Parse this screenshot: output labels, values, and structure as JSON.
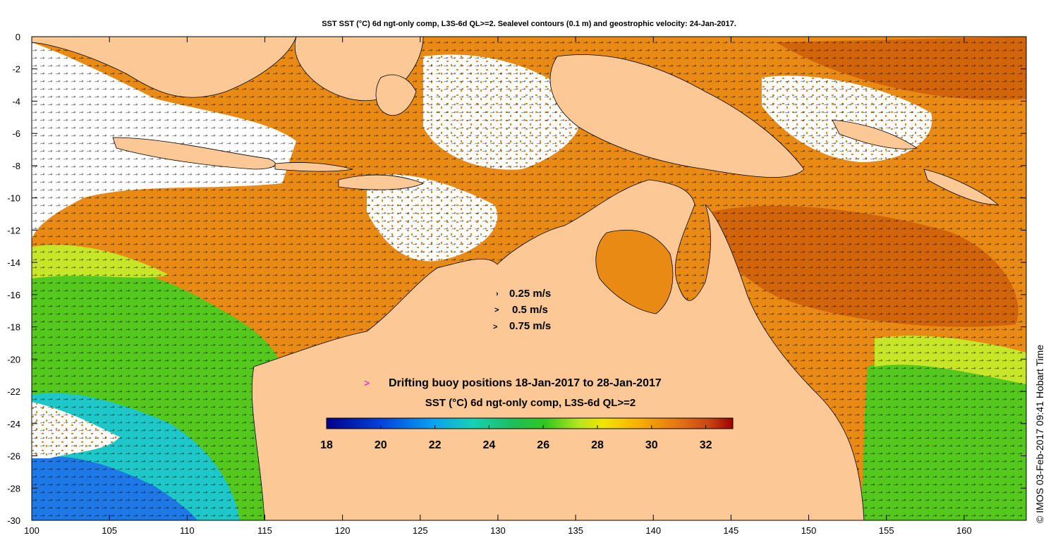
{
  "map": {
    "title": "SST SST (°C) 6d ngt-only comp, L3S-6d QL>=2. Sealevel contours (0.1 m) and geostrophic velocity: 24-Jan-2017.",
    "credit": "© IMOS 03-Feb-2017 09:41 Hobart Time",
    "x_axis": {
      "ticks": [
        "100",
        "105",
        "110",
        "115",
        "120",
        "125",
        "130",
        "135",
        "140",
        "145",
        "150",
        "155",
        "160"
      ],
      "values": [
        100,
        105,
        110,
        115,
        120,
        125,
        130,
        135,
        140,
        145,
        150,
        155,
        160
      ],
      "range": [
        100,
        164
      ]
    },
    "y_axis": {
      "ticks": [
        "0",
        "-2",
        "-4",
        "-6",
        "-8",
        "-10",
        "-12",
        "-14",
        "-16",
        "-18",
        "-20",
        "-22",
        "-24",
        "-26",
        "-28",
        "-30"
      ],
      "values": [
        0,
        -2,
        -4,
        -6,
        -8,
        -10,
        -12,
        -14,
        -16,
        -18,
        -20,
        -22,
        -24,
        -26,
        -28,
        -30
      ],
      "range": [
        -30,
        0
      ]
    },
    "velocity_legend": [
      {
        "symbol": "›",
        "label": "0.25 m/s"
      },
      {
        "symbol": ">",
        "label": "0.5 m/s"
      },
      {
        "symbol": ">",
        "label": "0.75 m/s"
      }
    ],
    "buoy_legend": {
      "symbol": ">",
      "label": "Drifting buoy positions 18-Jan-2017 to 28-Jan-2017",
      "color": "#e000e0"
    },
    "colorbar": {
      "label": "SST (°C) 6d ngt-only comp, L3S-6d QL>=2",
      "min": 18,
      "max": 33,
      "ticks": [
        "18",
        "20",
        "22",
        "24",
        "26",
        "28",
        "30",
        "32"
      ],
      "tick_values": [
        18,
        20,
        22,
        24,
        26,
        28,
        30,
        32
      ]
    },
    "colors": {
      "land": "#fcc895",
      "warm": "#e88a14",
      "hot": "#d2640a",
      "mid": "#55c81e",
      "cool": "#1ec8c8",
      "cold": "#1e78e6",
      "cloud": "#ffffff"
    }
  }
}
